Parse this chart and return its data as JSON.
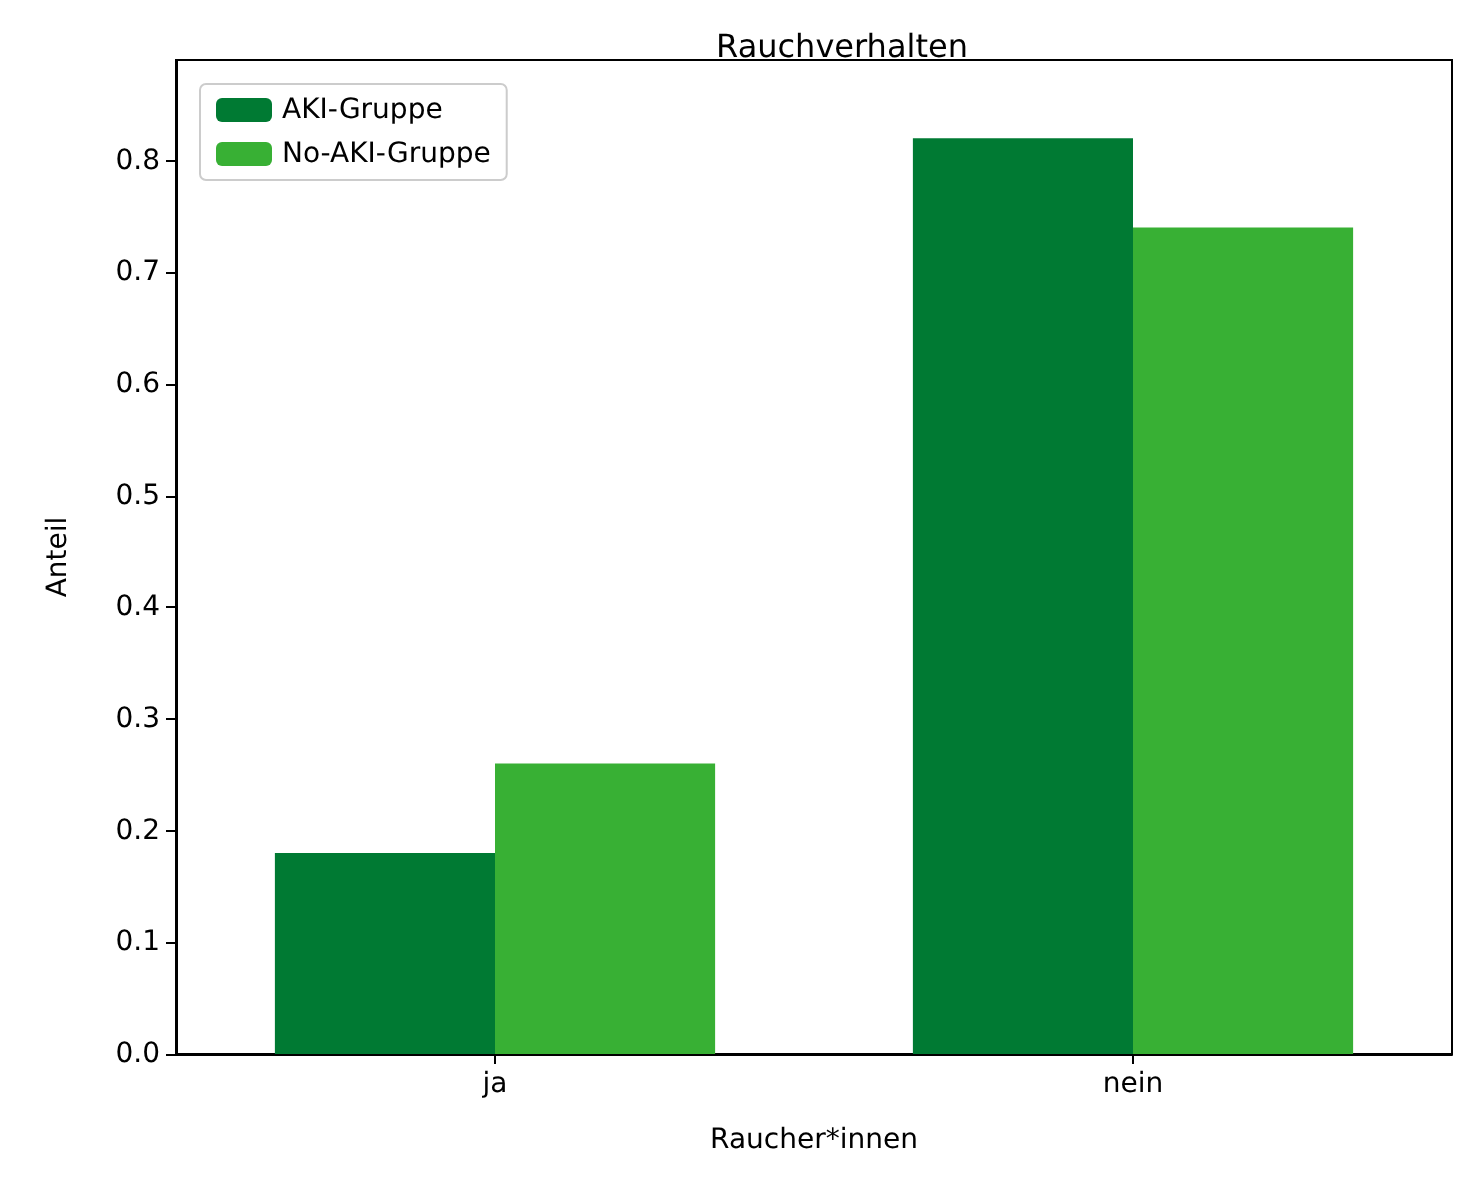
{
  "chart_data": {
    "type": "bar",
    "title": "Rauchverhalten",
    "xlabel": "Raucher*innen",
    "ylabel": "Anteil",
    "categories": [
      "ja",
      "nein"
    ],
    "series": [
      {
        "name": "AKI-Gruppe",
        "color": "#007a33",
        "values": [
          0.18,
          0.82
        ]
      },
      {
        "name": "No-AKI-Gruppe",
        "color": "#38b034",
        "values": [
          0.26,
          0.74
        ]
      }
    ],
    "ylim": [
      0,
      0.89
    ],
    "yticks": [
      {
        "value": 0,
        "label": "0.0"
      },
      {
        "value": 0.1,
        "label": "0.1"
      },
      {
        "value": 0.2,
        "label": "0.2"
      },
      {
        "value": 0.3,
        "label": "0.3"
      },
      {
        "value": 0.4,
        "label": "0.4"
      },
      {
        "value": 0.5,
        "label": "0.5"
      },
      {
        "value": 0.6,
        "label": "0.6"
      },
      {
        "value": 0.7,
        "label": "0.7"
      },
      {
        "value": 0.8,
        "label": "0.8"
      }
    ],
    "grid": false,
    "legend": "top left"
  }
}
